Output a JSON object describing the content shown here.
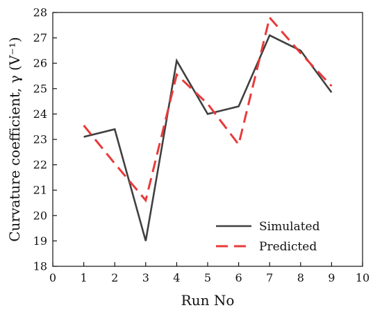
{
  "chart_data": {
    "type": "line",
    "xlabel": "Run No",
    "ylabel": "Curvature coefficient, γ (V⁻¹)",
    "xlim": [
      0,
      10
    ],
    "ylim": [
      18,
      28
    ],
    "xticks": [
      "0",
      "1",
      "2",
      "3",
      "4",
      "5",
      "6",
      "7",
      "8",
      "9",
      "10"
    ],
    "yticks": [
      "18",
      "19",
      "20",
      "21",
      "22",
      "23",
      "24",
      "25",
      "26",
      "27",
      "28"
    ],
    "grid": false,
    "legend_position": "bottom-right",
    "series": [
      {
        "name": "Simulated",
        "style": "solid",
        "color": "#404040",
        "x": [
          1,
          2,
          3,
          4,
          5,
          6,
          7,
          8,
          9
        ],
        "y": [
          23.1,
          23.4,
          19.0,
          26.1,
          24.0,
          24.3,
          27.1,
          26.5,
          24.85
        ]
      },
      {
        "name": "Predicted",
        "style": "dashed",
        "color": "#e83a3a",
        "x": [
          1,
          2,
          3,
          4,
          5,
          6,
          7,
          8,
          9
        ],
        "y": [
          23.55,
          22.05,
          20.6,
          25.55,
          24.4,
          22.8,
          27.8,
          26.4,
          25.1
        ]
      }
    ]
  }
}
